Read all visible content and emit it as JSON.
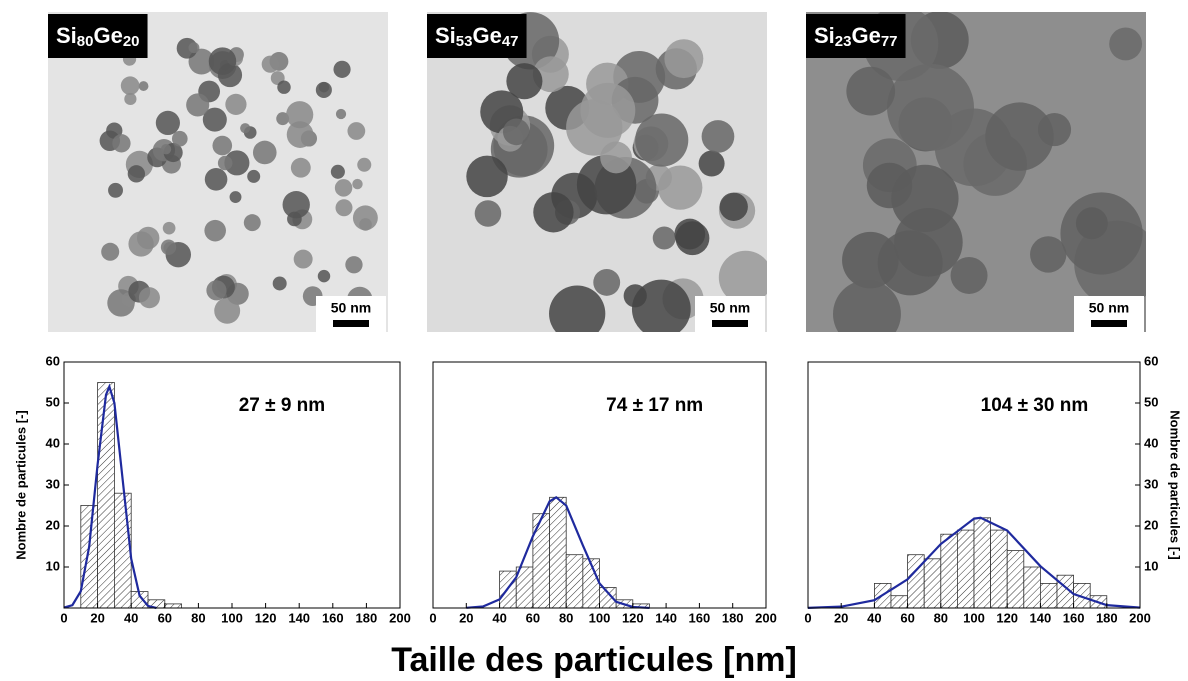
{
  "images": [
    {
      "label": [
        "Si",
        "80",
        "Ge",
        "20"
      ],
      "scale_bar": "50 nm"
    },
    {
      "label": [
        "Si",
        "53",
        "Ge",
        "47"
      ],
      "scale_bar": "50 nm"
    },
    {
      "label": [
        "Si",
        "23",
        "Ge",
        "77"
      ],
      "scale_bar": "50 nm"
    }
  ],
  "chart_data": [
    {
      "type": "histogram",
      "annotation": "27 ± 9 nm",
      "y_label": "Nombre de particules [-]",
      "y_axis_side": "left",
      "bins": [
        10,
        20,
        30,
        40,
        50,
        60,
        70
      ],
      "counts": [
        25,
        55,
        28,
        4,
        2,
        1
      ],
      "fit": {
        "x": [
          0,
          5,
          10,
          15,
          20,
          25,
          27,
          30,
          35,
          40,
          45,
          50,
          55
        ],
        "y": [
          0.1,
          0.7,
          4.1,
          15,
          35,
          52,
          54,
          50,
          31,
          12,
          3,
          0.5,
          0
        ]
      },
      "color": "#1f2a9e",
      "xlim": [
        0,
        200
      ],
      "xticks": [
        0,
        20,
        40,
        60,
        80,
        100,
        120,
        140,
        160,
        180,
        200
      ],
      "ylim": [
        0,
        60
      ],
      "yticks": [
        10,
        20,
        30,
        40,
        50,
        60
      ]
    },
    {
      "type": "histogram",
      "annotation": "74 ± 17 nm",
      "y_axis_side": "left",
      "bins": [
        40,
        50,
        60,
        70,
        80,
        90,
        100,
        110,
        120,
        130
      ],
      "counts": [
        9,
        10,
        23,
        27,
        13,
        12,
        5,
        2,
        1
      ],
      "fit": {
        "x": [
          20,
          30,
          40,
          50,
          60,
          70,
          74,
          80,
          90,
          100,
          110,
          120,
          130
        ],
        "y": [
          0.04,
          0.36,
          2.1,
          7.5,
          17.5,
          26,
          27,
          25,
          15.3,
          6,
          1.5,
          0.25,
          0.02
        ]
      },
      "color": "#1f2a9e",
      "xlim": [
        0,
        200
      ],
      "xticks": [
        0,
        20,
        40,
        60,
        80,
        100,
        120,
        140,
        160,
        180,
        200
      ],
      "ylim": [
        0,
        60
      ]
    },
    {
      "type": "histogram",
      "annotation": "104 ± 30 nm",
      "y_label": "Nombre de particules [-]",
      "y_axis_side": "right",
      "bins": [
        40,
        50,
        60,
        70,
        80,
        90,
        100,
        110,
        120,
        130,
        140,
        150,
        160,
        170,
        180
      ],
      "counts": [
        6,
        3,
        13,
        12,
        18,
        19,
        22,
        19,
        14,
        10,
        6,
        8,
        6,
        3
      ],
      "fit": {
        "x": [
          0,
          20,
          40,
          60,
          80,
          100,
          104,
          120,
          140,
          160,
          180,
          200
        ],
        "y": [
          0.035,
          0.33,
          1.9,
          7,
          15.6,
          21.8,
          22,
          18.9,
          10.2,
          3.4,
          0.7,
          0.09
        ]
      },
      "color": "#1f2a9e",
      "xlim": [
        0,
        200
      ],
      "xticks": [
        0,
        20,
        40,
        60,
        80,
        100,
        120,
        140,
        160,
        180,
        200
      ],
      "ylim": [
        0,
        60
      ],
      "yticks": [
        10,
        20,
        30,
        40,
        50,
        60
      ]
    }
  ],
  "x_label": "Taille des particules [nm]"
}
